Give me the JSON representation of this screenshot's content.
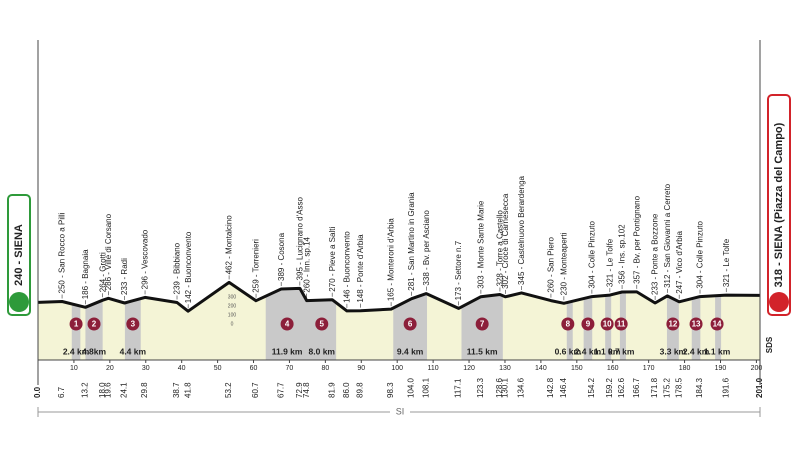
{
  "chart_data": {
    "type": "profile",
    "start": {
      "label": "240 - SIENA",
      "km": {
        "value": 0,
        "label": "0.0"
      },
      "alt": 240
    },
    "finish": {
      "label": "318 - SIENA (Piazza del Campo)",
      "km": {
        "value": 201,
        "label": "201.0"
      },
      "alt": 318
    },
    "xlim": [
      0,
      201
    ],
    "xticks": [
      10,
      20,
      30,
      40,
      50,
      60,
      70,
      80,
      90,
      100,
      110,
      120,
      130,
      140,
      150,
      160,
      170,
      180,
      190,
      200
    ],
    "ylim": [
      0,
      300
    ],
    "alt_scale": [
      300,
      200,
      100,
      0
    ],
    "waypoints": [
      {
        "km": 6.7,
        "label": "250 - San Rocco a Pilli",
        "alt": 250
      },
      {
        "km": 13.2,
        "label": "186 - Bagnaia",
        "alt": 186
      },
      {
        "km": {
          "value": 18,
          "label": "18.0"
        },
        "label": "264 - Grotti",
        "alt": 264
      },
      {
        "km": 19.6,
        "label": "286 - Ville di Corsano",
        "alt": 286
      },
      {
        "km": 24.1,
        "label": "233 - Radi",
        "alt": 233
      },
      {
        "km": 29.8,
        "label": "296 - Vescovado",
        "alt": 296
      },
      {
        "km": 38.7,
        "label": "239 - Bibbiano",
        "alt": 239
      },
      {
        "km": 41.8,
        "label": "142 - Buonconvento",
        "alt": 142
      },
      {
        "km": 53.2,
        "label": "462 - Montalcino",
        "alt": 462
      },
      {
        "km": 60.7,
        "label": "259 - Torrenieri",
        "alt": 259
      },
      {
        "km": 67.7,
        "label": "389 - Cosona",
        "alt": 389
      },
      {
        "km": 72.9,
        "label": "395 - Lucignano d'Asso",
        "alt": 395
      },
      {
        "km": 74.8,
        "label": "260 - Inn. sp.14",
        "alt": 260
      },
      {
        "km": 81.9,
        "label": "270 - Pieve a Salti",
        "alt": 270
      },
      {
        "km": {
          "value": 86,
          "label": "86.0"
        },
        "label": "146 - Buonconvento",
        "alt": 146
      },
      {
        "km": 89.8,
        "label": "148 - Ponte d'Arbia",
        "alt": 148
      },
      {
        "km": 98.3,
        "label": "165 - Monteroni d'Arbia",
        "alt": 165
      },
      {
        "km": {
          "value": 104,
          "label": "104.0"
        },
        "label": "281 - San Martino in Grania",
        "alt": 281
      },
      {
        "km": 108.1,
        "label": "338 - Bv. per Asciano",
        "alt": 338
      },
      {
        "km": 117.1,
        "label": "173 - Settore n.7",
        "alt": 173
      },
      {
        "km": 123.3,
        "label": "303 - Monte Sante Marie",
        "alt": 303
      },
      {
        "km": 128.6,
        "label": "328 - Torre a Castello",
        "alt": 328
      },
      {
        "km": 130.1,
        "label": "302 - Croce di Carnesecca",
        "alt": 302
      },
      {
        "km": 134.6,
        "label": "345 - Castelnuovo Berardenga",
        "alt": 345
      },
      {
        "km": 142.8,
        "label": "260 - San Piero",
        "alt": 260
      },
      {
        "km": 146.4,
        "label": "230 - Monteaperti",
        "alt": 230
      },
      {
        "km": 154.2,
        "label": "304 - Colle Pinzuto",
        "alt": 304
      },
      {
        "km": 159.2,
        "label": "321 - Le Tolfe",
        "alt": 321
      },
      {
        "km": 162.6,
        "label": "356 - Ins. sp.102",
        "alt": 356
      },
      {
        "km": 166.7,
        "label": "357 - Bv. per Pontignano",
        "alt": 357
      },
      {
        "km": 171.8,
        "label": "233 - Ponte a Bozzone",
        "alt": 233
      },
      {
        "km": 175.2,
        "label": "312 - San Giovanni a Cerreto",
        "alt": 312
      },
      {
        "km": 178.5,
        "label": "247 - Vico d'Arbia",
        "alt": 247
      },
      {
        "km": 184.3,
        "label": "304 - Colle Pinzuto",
        "alt": 304
      },
      {
        "km": 191.6,
        "label": "321 - Le Tolfe",
        "alt": 321
      }
    ],
    "sectors": [
      {
        "number": 1,
        "start": 9.4,
        "length": 2.4,
        "label": "2.4 km"
      },
      {
        "number": 2,
        "start": 13.2,
        "length": 4.8,
        "label": "4.8km"
      },
      {
        "number": 3,
        "start": 24.2,
        "length": 4.4,
        "label": "4.4 km"
      },
      {
        "number": 4,
        "start": 63.4,
        "length": 11.9,
        "label": "11.9 km"
      },
      {
        "number": 5,
        "start": 75,
        "length": 8,
        "label": "8.0 km"
      },
      {
        "number": 6,
        "start": 98.9,
        "length": 9.4,
        "label": "9.4 km"
      },
      {
        "number": 7,
        "start": 117.9,
        "length": 11.5,
        "label": "11.5 km"
      },
      {
        "number": 8,
        "start": 147.2,
        "length": 0.6,
        "label": "0.6 km"
      },
      {
        "number": 9,
        "start": 151.9,
        "length": 2.4,
        "label": "2.4 km"
      },
      {
        "number": 10,
        "start": 157.9,
        "length": 1.1,
        "label": "1.1 km"
      },
      {
        "number": 11,
        "start": 162,
        "length": 0.7,
        "label": "0.7 km"
      },
      {
        "number": 12,
        "start": 175.1,
        "length": 3.3,
        "label": "3.3 km"
      },
      {
        "number": 13,
        "start": 182,
        "length": 2.4,
        "label": "2.4 km"
      },
      {
        "number": 14,
        "start": 188.5,
        "length": 1.1,
        "label": "1.1 km"
      }
    ],
    "region": "SI",
    "logo": "SDS"
  }
}
